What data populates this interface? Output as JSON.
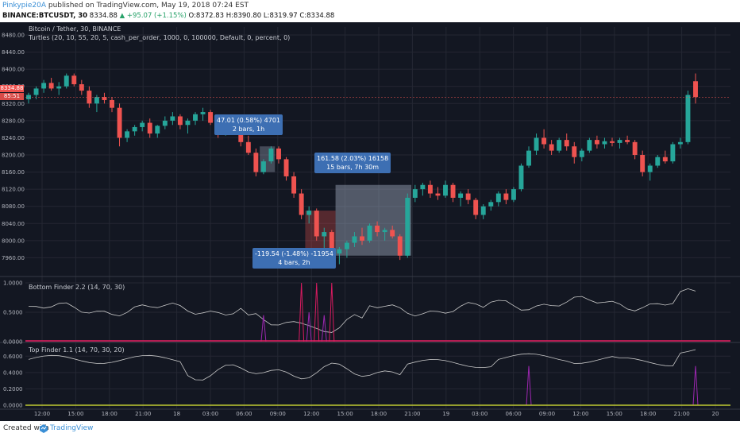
{
  "header": {
    "author": "Pinkypie20A",
    "published": "published on TradingView.com, May 19, 2018 07:24 EST",
    "symbol": "BINANCE:BTCUSDT, 30",
    "last": "8334.88",
    "change": "▲ +95.07 (+1.15%)",
    "open": "O:8372.83",
    "high": "H:8390.80",
    "low": "L:8319.97",
    "close": "C:8334.88"
  },
  "main_legend": {
    "title": "Bitcoin / Tether, 30, BINANCE",
    "strategy": "Turtles (20, 10, 55, 20, 5, cash_per_order, 1000, 0, 100000, Default, 0, percent, 0)"
  },
  "price_tags": {
    "last": "8334.88",
    "other": "85:51"
  },
  "tooltips": [
    {
      "line1": "47.01 (0.58%) 4701",
      "line2": "2 bars, 1h"
    },
    {
      "line1": "161.58 (2.03%) 16158",
      "line2": "15 bars, 7h 30m"
    },
    {
      "line1": "-119.54 (-1.48%) -11954",
      "line2": "4 bars, 2h"
    }
  ],
  "footer": {
    "created_with": "Created with",
    "brand": "TradingView"
  },
  "colors": {
    "up": "#26a69a",
    "down": "#ef5350",
    "background": "#131722",
    "grid": "#242733",
    "indicator_line": "#c8c8c8",
    "spike": "#9c27b0",
    "baseline_pink": "#e91e63",
    "baseline_yellow": "#c0ca33"
  },
  "chart_data": [
    {
      "type": "candlestick",
      "title": "Bitcoin / Tether, 30, BINANCE",
      "ylim": [
        7920,
        8480
      ],
      "y_ticks": [
        "8480.00",
        "8440.00",
        "8400.00",
        "8360.00",
        "8320.00",
        "8280.00",
        "8240.00",
        "8200.00",
        "8160.00",
        "8120.00",
        "8080.00",
        "8040.00",
        "8000.00",
        "7960.00"
      ],
      "x_ticks": [
        "12:00",
        "15:00",
        "18:00",
        "21:00",
        "18",
        "03:00",
        "06:00",
        "09:00",
        "12:00",
        "15:00",
        "18:00",
        "21:00",
        "19",
        "03:00",
        "06:00",
        "09:00",
        "12:00",
        "15:00",
        "18:00",
        "21:00",
        "20"
      ],
      "candles": [
        [
          8330,
          8345,
          8320,
          8340
        ],
        [
          8340,
          8360,
          8330,
          8355
        ],
        [
          8355,
          8375,
          8345,
          8368
        ],
        [
          8368,
          8380,
          8350,
          8355
        ],
        [
          8355,
          8370,
          8340,
          8360
        ],
        [
          8360,
          8390,
          8355,
          8385
        ],
        [
          8385,
          8390,
          8360,
          8365
        ],
        [
          8365,
          8375,
          8340,
          8350
        ],
        [
          8350,
          8360,
          8310,
          8320
        ],
        [
          8320,
          8340,
          8300,
          8335
        ],
        [
          8335,
          8345,
          8320,
          8328
        ],
        [
          8328,
          8335,
          8300,
          8310
        ],
        [
          8310,
          8320,
          8220,
          8240
        ],
        [
          8240,
          8260,
          8230,
          8255
        ],
        [
          8255,
          8270,
          8245,
          8265
        ],
        [
          8265,
          8280,
          8255,
          8275
        ],
        [
          8275,
          8285,
          8240,
          8250
        ],
        [
          8250,
          8270,
          8240,
          8268
        ],
        [
          8268,
          8290,
          8260,
          8280
        ],
        [
          8280,
          8300,
          8270,
          8290
        ],
        [
          8290,
          8295,
          8260,
          8270
        ],
        [
          8270,
          8285,
          8250,
          8280
        ],
        [
          8280,
          8300,
          8270,
          8295
        ],
        [
          8295,
          8310,
          8280,
          8300
        ],
        [
          8300,
          8305,
          8270,
          8275
        ],
        [
          8275,
          8290,
          8240,
          8260
        ],
        [
          8260,
          8275,
          8245,
          8270
        ],
        [
          8270,
          8280,
          8255,
          8262
        ],
        [
          8262,
          8270,
          8220,
          8230
        ],
        [
          8230,
          8245,
          8200,
          8205
        ],
        [
          8205,
          8215,
          8150,
          8160
        ],
        [
          8160,
          8190,
          8155,
          8185
        ],
        [
          8185,
          8220,
          8180,
          8215
        ],
        [
          8215,
          8220,
          8180,
          8190
        ],
        [
          8190,
          8195,
          8140,
          8150
        ],
        [
          8150,
          8160,
          8100,
          8110
        ],
        [
          8110,
          8120,
          8050,
          8060
        ],
        [
          8060,
          8080,
          8040,
          8070
        ],
        [
          8070,
          8075,
          8000,
          8010
        ],
        [
          8010,
          8030,
          7980,
          8020
        ],
        [
          8020,
          8025,
          7960,
          7970
        ],
        [
          7970,
          7985,
          7945,
          7980
        ],
        [
          7980,
          8000,
          7960,
          7995
        ],
        [
          7995,
          8020,
          7985,
          8010
        ],
        [
          8010,
          8030,
          7990,
          8000
        ],
        [
          8000,
          8040,
          7995,
          8035
        ],
        [
          8035,
          8045,
          8010,
          8020
        ],
        [
          8020,
          8030,
          8000,
          8025
        ],
        [
          8025,
          8035,
          8005,
          8010
        ],
        [
          8010,
          8015,
          7955,
          7965
        ],
        [
          7965,
          8110,
          7960,
          8100
        ],
        [
          8100,
          8130,
          8090,
          8120
        ],
        [
          8120,
          8135,
          8105,
          8130
        ],
        [
          8130,
          8140,
          8100,
          8110
        ],
        [
          8110,
          8125,
          8095,
          8105
        ],
        [
          8105,
          8140,
          8100,
          8130
        ],
        [
          8130,
          8135,
          8090,
          8100
        ],
        [
          8100,
          8115,
          8080,
          8110
        ],
        [
          8110,
          8120,
          8085,
          8095
        ],
        [
          8095,
          8100,
          8050,
          8060
        ],
        [
          8060,
          8085,
          8050,
          8080
        ],
        [
          8080,
          8095,
          8070,
          8090
        ],
        [
          8090,
          8115,
          8080,
          8110
        ],
        [
          8110,
          8120,
          8085,
          8095
        ],
        [
          8095,
          8125,
          8090,
          8120
        ],
        [
          8120,
          8180,
          8115,
          8175
        ],
        [
          8175,
          8220,
          8170,
          8210
        ],
        [
          8210,
          8250,
          8200,
          8240
        ],
        [
          8240,
          8260,
          8215,
          8225
        ],
        [
          8225,
          8235,
          8200,
          8210
        ],
        [
          8210,
          8240,
          8205,
          8235
        ],
        [
          8235,
          8250,
          8210,
          8220
        ],
        [
          8220,
          8230,
          8180,
          8195
        ],
        [
          8195,
          8215,
          8185,
          8210
        ],
        [
          8210,
          8240,
          8205,
          8235
        ],
        [
          8235,
          8245,
          8215,
          8225
        ],
        [
          8225,
          8240,
          8215,
          8232
        ],
        [
          8232,
          8240,
          8220,
          8228
        ],
        [
          8228,
          8240,
          8215,
          8235
        ],
        [
          8235,
          8245,
          8225,
          8230
        ],
        [
          8230,
          8235,
          8190,
          8200
        ],
        [
          8200,
          8210,
          8150,
          8160
        ],
        [
          8160,
          8180,
          8140,
          8175
        ],
        [
          8175,
          8200,
          8170,
          8195
        ],
        [
          8195,
          8210,
          8180,
          8185
        ],
        [
          8185,
          8230,
          8180,
          8225
        ],
        [
          8225,
          8240,
          8215,
          8230
        ],
        [
          8230,
          8350,
          8225,
          8340
        ],
        [
          8372,
          8390,
          8320,
          8335
        ]
      ]
    },
    {
      "type": "line",
      "title": "Bottom Finder 2.2 (14, 70, 30)",
      "ylim": [
        0,
        1
      ],
      "y_ticks": [
        "1.0000",
        "0.5000",
        "0.0000"
      ]
    },
    {
      "type": "line",
      "title": "Top Finder 1.1 (14, 70, 30, 20)",
      "ylim": [
        0,
        0.7
      ],
      "y_ticks": [
        "0.6000",
        "0.4000",
        "0.2000",
        "0.0000"
      ]
    }
  ]
}
